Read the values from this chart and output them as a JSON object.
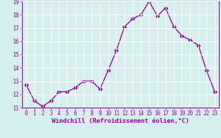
{
  "x": [
    0,
    1,
    2,
    3,
    4,
    5,
    6,
    7,
    8,
    9,
    10,
    11,
    12,
    13,
    14,
    15,
    16,
    17,
    18,
    19,
    20,
    21,
    22,
    23
  ],
  "y": [
    12.7,
    11.5,
    11.1,
    11.5,
    12.2,
    12.2,
    12.5,
    13.0,
    13.0,
    12.4,
    13.8,
    15.3,
    17.1,
    17.7,
    18.0,
    19.0,
    17.9,
    18.5,
    17.1,
    16.4,
    16.1,
    15.7,
    13.8,
    12.2
  ],
  "line_color": "#990099",
  "marker": "D",
  "markersize": 2.5,
  "linewidth": 1.0,
  "xlabel": "Windchill (Refroidissement éolien,°C)",
  "xlabel_fontsize": 6.5,
  "bg_color": "#d5efee",
  "grid_color": "#ffffff",
  "ylim": [
    11,
    19
  ],
  "xlim": [
    -0.5,
    23.5
  ],
  "yticks": [
    11,
    12,
    13,
    14,
    15,
    16,
    17,
    18,
    19
  ],
  "xticks": [
    0,
    1,
    2,
    3,
    4,
    5,
    6,
    7,
    8,
    9,
    10,
    11,
    12,
    13,
    14,
    15,
    16,
    17,
    18,
    19,
    20,
    21,
    22,
    23
  ],
  "tick_fontsize": 5.5,
  "tick_color": "#990099",
  "spine_color": "#990099"
}
